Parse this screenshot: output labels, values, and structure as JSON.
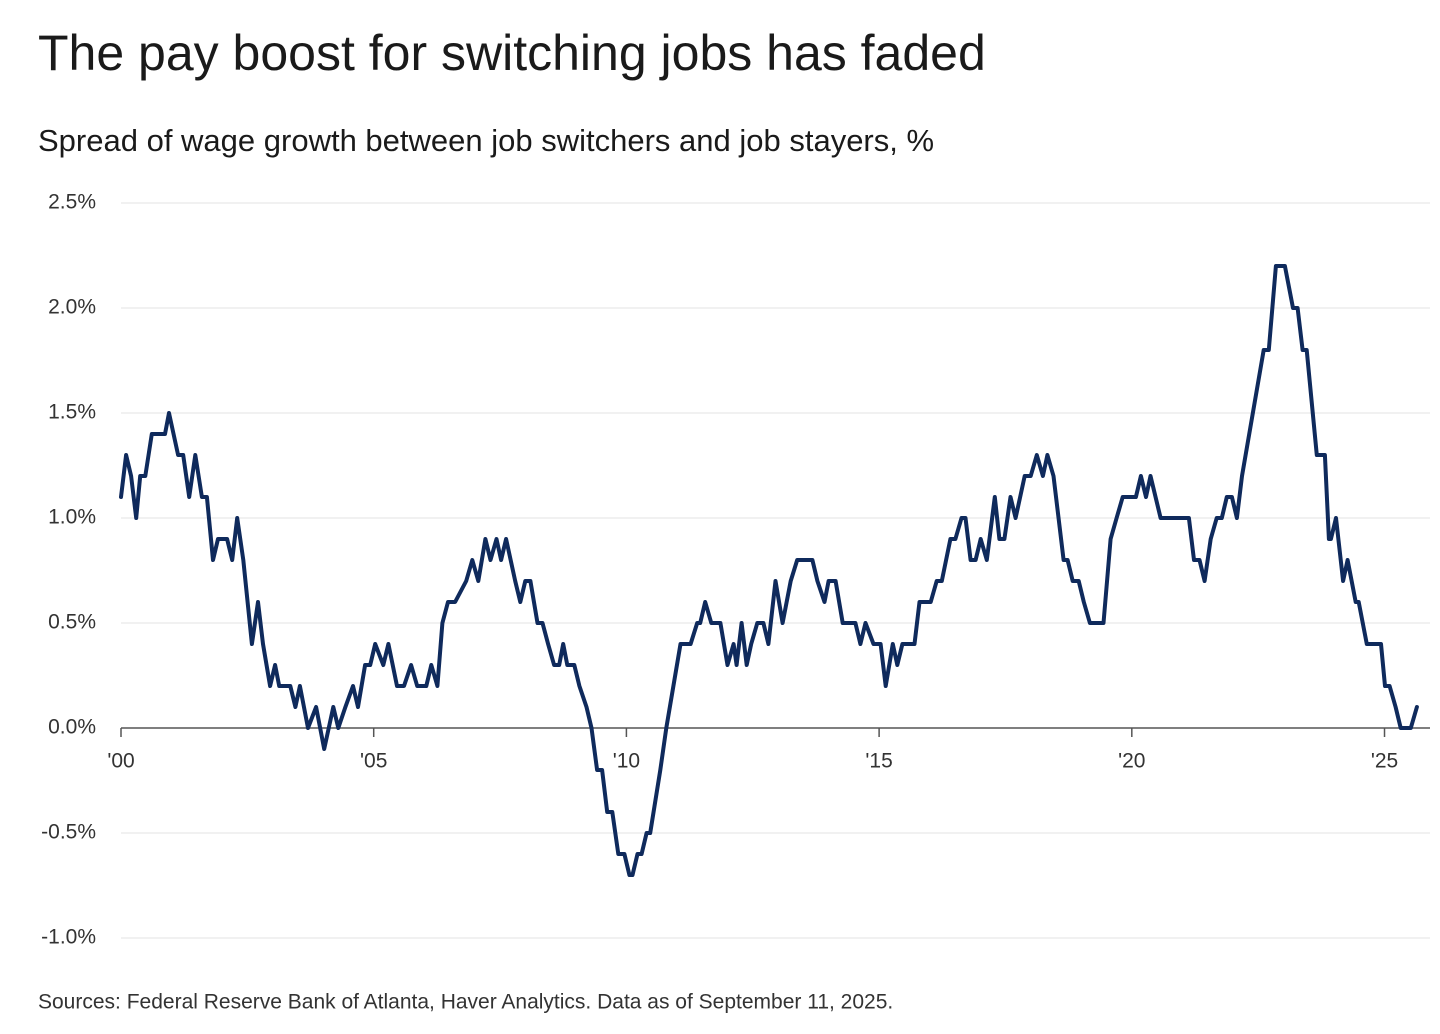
{
  "chart_data": {
    "type": "line",
    "title": "The pay boost for switching jobs has faded",
    "subtitle": "Spread of wage growth between job switchers and job stayers, %",
    "source": "Sources: Federal Reserve Bank of Atlanta, Haver Analytics. Data as of September 11, 2025.",
    "x": [
      2000.0,
      2000.1,
      2000.2,
      2000.3,
      2000.38,
      2000.48,
      2000.61,
      2000.87,
      2000.95,
      2001.13,
      2001.23,
      2001.35,
      2001.47,
      2001.6,
      2001.7,
      2001.82,
      2001.92,
      2002.1,
      2002.2,
      2002.3,
      2002.42,
      2002.59,
      2002.71,
      2002.81,
      2002.95,
      2003.05,
      2003.13,
      2003.35,
      2003.45,
      2003.54,
      2003.7,
      2003.86,
      2004.02,
      2004.2,
      2004.3,
      2004.44,
      2004.59,
      2004.69,
      2004.83,
      2004.93,
      2005.03,
      2005.19,
      2005.29,
      2005.46,
      2005.6,
      2005.74,
      2005.86,
      2006.04,
      2006.14,
      2006.26,
      2006.36,
      2006.47,
      2006.61,
      2006.83,
      2006.95,
      2007.07,
      2007.21,
      2007.31,
      2007.43,
      2007.52,
      2007.62,
      2007.8,
      2007.9,
      2008.0,
      2008.1,
      2008.24,
      2008.34,
      2008.45,
      2008.57,
      2008.67,
      2008.75,
      2008.83,
      2008.97,
      2009.07,
      2009.21,
      2009.31,
      2009.42,
      2009.52,
      2009.62,
      2009.72,
      2009.84,
      2009.96,
      2010.06,
      2010.12,
      2010.22,
      2010.3,
      2010.4,
      2010.47,
      2010.67,
      2010.79,
      2010.93,
      2011.07,
      2011.27,
      2011.4,
      2011.46,
      2011.56,
      2011.68,
      2011.86,
      2012.0,
      2012.12,
      2012.18,
      2012.28,
      2012.38,
      2012.47,
      2012.59,
      2012.71,
      2012.81,
      2012.95,
      2013.09,
      2013.25,
      2013.38,
      2013.68,
      2013.78,
      2013.92,
      2014.0,
      2014.14,
      2014.28,
      2014.53,
      2014.63,
      2014.73,
      2014.89,
      2015.03,
      2015.13,
      2015.27,
      2015.36,
      2015.46,
      2015.7,
      2015.8,
      2016.02,
      2016.14,
      2016.24,
      2016.41,
      2016.51,
      2016.63,
      2016.71,
      2016.81,
      2016.91,
      2017.01,
      2017.13,
      2017.29,
      2017.38,
      2017.48,
      2017.6,
      2017.7,
      2017.88,
      2018.0,
      2018.12,
      2018.24,
      2018.33,
      2018.45,
      2018.65,
      2018.73,
      2018.83,
      2018.95,
      2019.05,
      2019.17,
      2019.44,
      2019.58,
      2019.7,
      2019.82,
      2020.08,
      2020.18,
      2020.28,
      2020.37,
      2020.57,
      2021.13,
      2021.23,
      2021.34,
      2021.44,
      2021.56,
      2021.68,
      2021.78,
      2021.88,
      2021.98,
      2022.08,
      2022.18,
      2022.61,
      2022.71,
      2022.85,
      2023.03,
      2023.19,
      2023.28,
      2023.38,
      2023.46,
      2023.66,
      2023.82,
      2023.9,
      2023.94,
      2024.04,
      2024.18,
      2024.27,
      2024.43,
      2024.49,
      2024.65,
      2024.93,
      2025.01,
      2025.1,
      2025.22,
      2025.32,
      2025.52,
      2025.64
    ],
    "series": [
      {
        "color": "#0f2a5c",
        "values": [
          1.1,
          1.3,
          1.2,
          1.0,
          1.2,
          1.2,
          1.4,
          1.4,
          1.5,
          1.3,
          1.3,
          1.1,
          1.3,
          1.1,
          1.1,
          0.8,
          0.9,
          0.9,
          0.8,
          1.0,
          0.8,
          0.4,
          0.6,
          0.4,
          0.2,
          0.3,
          0.2,
          0.2,
          0.1,
          0.2,
          0.0,
          0.1,
          -0.1,
          0.1,
          0.0,
          0.1,
          0.2,
          0.1,
          0.3,
          0.3,
          0.4,
          0.3,
          0.4,
          0.2,
          0.2,
          0.3,
          0.2,
          0.2,
          0.3,
          0.2,
          0.5,
          0.6,
          0.6,
          0.7,
          0.8,
          0.7,
          0.9,
          0.8,
          0.9,
          0.8,
          0.9,
          0.7,
          0.6,
          0.7,
          0.7,
          0.5,
          0.5,
          0.4,
          0.3,
          0.3,
          0.4,
          0.3,
          0.3,
          0.2,
          0.1,
          0.0,
          -0.2,
          -0.2,
          -0.4,
          -0.4,
          -0.6,
          -0.6,
          -0.7,
          -0.7,
          -0.6,
          -0.6,
          -0.5,
          -0.5,
          -0.2,
          0.0,
          0.2,
          0.4,
          0.4,
          0.5,
          0.5,
          0.6,
          0.5,
          0.5,
          0.3,
          0.4,
          0.3,
          0.5,
          0.3,
          0.4,
          0.5,
          0.5,
          0.4,
          0.7,
          0.5,
          0.7,
          0.8,
          0.8,
          0.7,
          0.6,
          0.7,
          0.7,
          0.5,
          0.5,
          0.4,
          0.5,
          0.4,
          0.4,
          0.2,
          0.4,
          0.3,
          0.4,
          0.4,
          0.6,
          0.6,
          0.7,
          0.7,
          0.9,
          0.9,
          1.0,
          1.0,
          0.8,
          0.8,
          0.9,
          0.8,
          1.1,
          0.9,
          0.9,
          1.1,
          1.0,
          1.2,
          1.2,
          1.3,
          1.2,
          1.3,
          1.2,
          0.8,
          0.8,
          0.7,
          0.7,
          0.6,
          0.5,
          0.5,
          0.9,
          1.0,
          1.1,
          1.1,
          1.2,
          1.1,
          1.2,
          1.0,
          1.0,
          0.8,
          0.8,
          0.7,
          0.9,
          1.0,
          1.0,
          1.1,
          1.1,
          1.0,
          1.2,
          1.8,
          1.8,
          2.2,
          2.2,
          2.0,
          2.0,
          1.8,
          1.8,
          1.3,
          1.3,
          0.9,
          0.9,
          1.0,
          0.7,
          0.8,
          0.6,
          0.6,
          0.4,
          0.4,
          0.2,
          0.2,
          0.1,
          0.0,
          0.0,
          0.1
        ]
      }
    ],
    "xlim": [
      2000,
      2025.9
    ],
    "xticks": [
      {
        "value": 2000,
        "label": "'00"
      },
      {
        "value": 2005,
        "label": "'05"
      },
      {
        "value": 2010,
        "label": "'10"
      },
      {
        "value": 2015,
        "label": "'15"
      },
      {
        "value": 2020,
        "label": "'20"
      },
      {
        "value": 2025,
        "label": "'25"
      }
    ],
    "ylim": [
      -1.0,
      2.5
    ],
    "yticks": [
      {
        "value": -1.0,
        "label": "-1.0%"
      },
      {
        "value": -0.5,
        "label": "-0.5%"
      },
      {
        "value": 0,
        "label": "0.0%"
      },
      {
        "value": 0.5,
        "label": "0.5%"
      },
      {
        "value": 1.0,
        "label": "1.0%"
      },
      {
        "value": 1.5,
        "label": "1.5%"
      },
      {
        "value": 2.0,
        "label": "2.0%"
      },
      {
        "value": 2.5,
        "label": "2.5%"
      }
    ],
    "grid": true
  }
}
